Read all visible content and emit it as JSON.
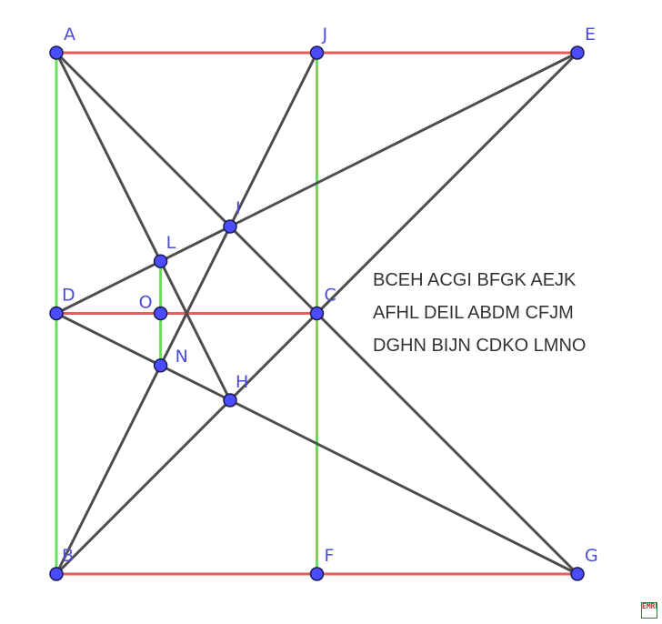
{
  "diagram": {
    "points": {
      "A": {
        "x": 0,
        "y": 0
      },
      "J": {
        "x": 1,
        "y": 0
      },
      "E": {
        "x": 2,
        "y": 0
      },
      "D": {
        "x": 0,
        "y": 1
      },
      "C": {
        "x": 1,
        "y": 1
      },
      "B": {
        "x": 0,
        "y": 2
      },
      "F": {
        "x": 1,
        "y": 2
      },
      "G": {
        "x": 2,
        "y": 2
      },
      "I": {
        "x": 0.6667,
        "y": 0.6667
      },
      "L": {
        "x": 0.4,
        "y": 0.8
      },
      "O": {
        "x": 0.4,
        "y": 1
      },
      "N": {
        "x": 0.4,
        "y": 1.2
      },
      "H": {
        "x": 0.6667,
        "y": 1.3333
      }
    },
    "segments": {
      "red": [
        [
          "A",
          "E"
        ],
        [
          "D",
          "C"
        ],
        [
          "B",
          "G"
        ]
      ],
      "green": [
        [
          "A",
          "B"
        ],
        [
          "J",
          "F"
        ],
        [
          "L",
          "N"
        ]
      ],
      "dark": [
        [
          "A",
          "C"
        ],
        [
          "A",
          "H"
        ],
        [
          "J",
          "B"
        ],
        [
          "E",
          "D"
        ],
        [
          "E",
          "B"
        ],
        [
          "D",
          "G"
        ],
        [
          "C",
          "G"
        ]
      ]
    },
    "colors": {
      "red": "#e85c5c",
      "green": "#66e05a",
      "dark": "#4d4d4d",
      "point": "#4c4cff"
    }
  },
  "quad_lines": [
    "BCEH ACGI BFGK AEJK",
    "AFHL DEIL ABDM CFJM",
    "DGHN BIJN CDKO LMNO"
  ],
  "logo_text": "EMRD"
}
